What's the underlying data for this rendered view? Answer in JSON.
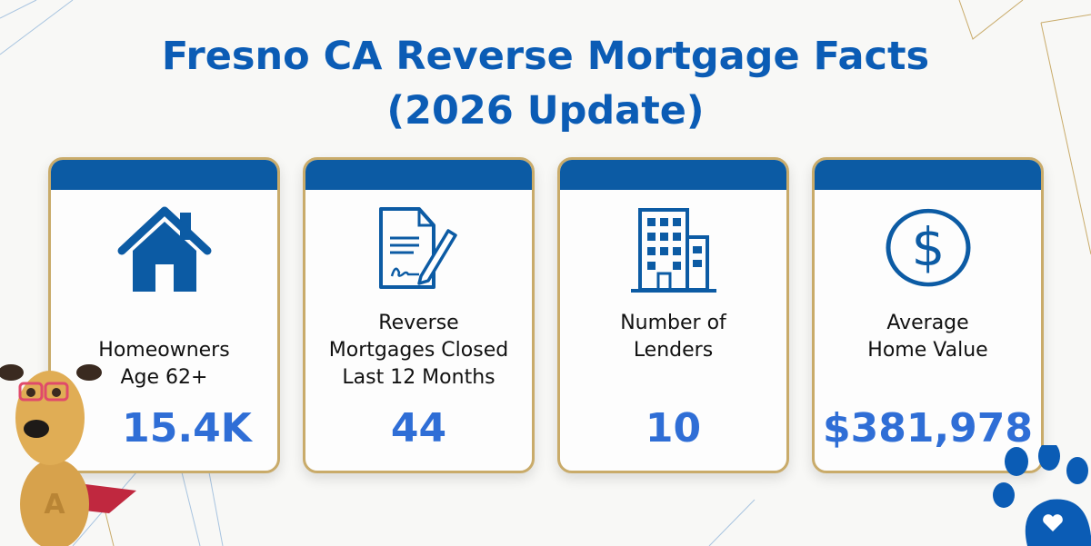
{
  "title": {
    "line1": "Fresno CA Reverse Mortgage Facts",
    "line2": "(2026 Update)"
  },
  "colors": {
    "title": "#0b5cb5",
    "card_band": "#0c5ba4",
    "card_border": "#c9ab6a",
    "value": "#2f6ed6"
  },
  "cards": [
    {
      "icon": "house-icon",
      "label_lines": [
        "Homeowners",
        "Age 62+"
      ],
      "value": "15.4K"
    },
    {
      "icon": "signed-document-icon",
      "label_lines": [
        "Reverse",
        "Mortgages Closed",
        "Last 12 Months"
      ],
      "value": "44"
    },
    {
      "icon": "office-building-icon",
      "label_lines": [
        "Number of",
        "Lenders"
      ],
      "value": "10"
    },
    {
      "icon": "dollar-circle-icon",
      "label_lines": [
        "Average",
        "Home Value"
      ],
      "value": "$381,978"
    }
  ]
}
